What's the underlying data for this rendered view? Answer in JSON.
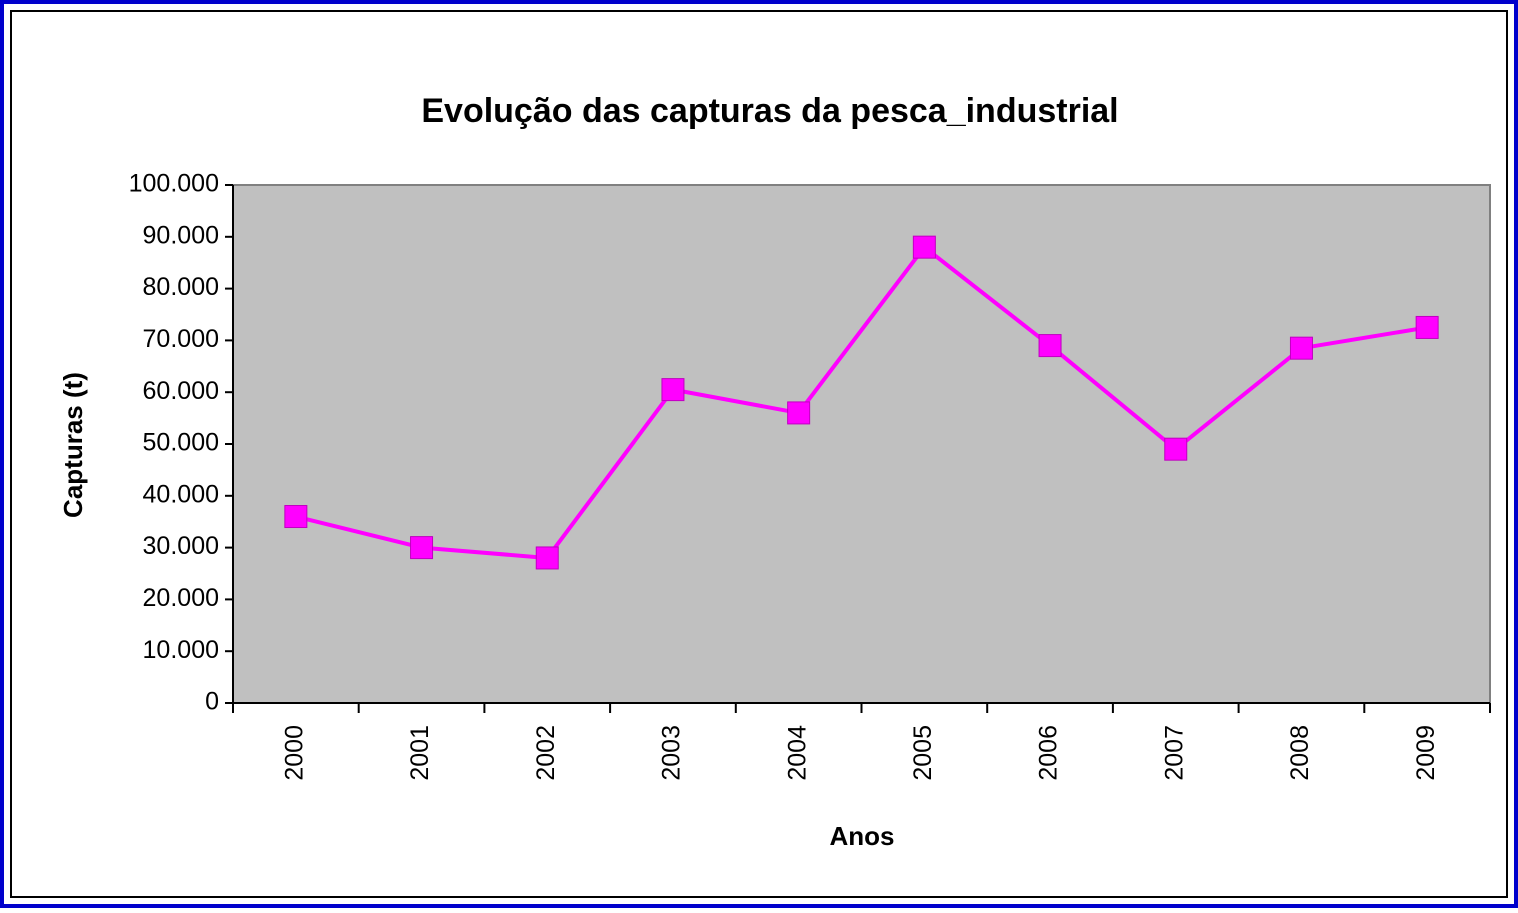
{
  "chart_data": {
    "type": "line",
    "title": "Evolução das capturas da pesca_industrial",
    "x_label": "Anos",
    "y_label": "Capturas (t)",
    "categories": [
      "2000",
      "2001",
      "2002",
      "2003",
      "2004",
      "2005",
      "2006",
      "2007",
      "2008",
      "2009"
    ],
    "series": [
      {
        "color": "#ff00ff",
        "values": [
          36000,
          30000,
          28000,
          60500,
          56000,
          88000,
          69000,
          49000,
          68500,
          72500
        ]
      }
    ],
    "ylim": [
      0,
      100000
    ],
    "yticks": [
      0,
      {
        "value": 10000,
        "label": "10.000"
      },
      {
        "value": 20000,
        "label": "20.000"
      },
      {
        "value": 30000,
        "label": "30.000"
      },
      {
        "value": 40000,
        "label": "40.000"
      },
      {
        "value": 50000,
        "label": "50.000"
      },
      {
        "value": 60000,
        "label": "60.000"
      },
      {
        "value": 70000,
        "label": "70.000"
      },
      {
        "value": 80000,
        "label": "80.000"
      },
      {
        "value": 90000,
        "label": "90.000"
      },
      {
        "value": 100000,
        "label": "100.000"
      }
    ],
    "plot_background": "#c0c0c0",
    "grid": false
  }
}
